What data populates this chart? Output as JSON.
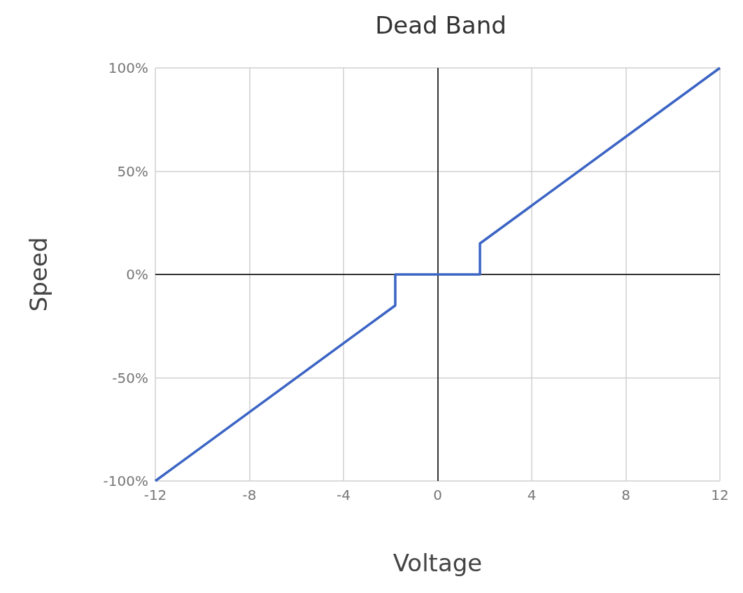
{
  "chart_data": {
    "type": "line",
    "title": "Dead Band",
    "xlabel": "Voltage",
    "ylabel": "Speed",
    "x": [
      -12,
      -1.8,
      -1.8,
      1.8,
      1.8,
      12
    ],
    "series": [
      {
        "color": "#3b64c4",
        "values": [
          -100,
          -15,
          0,
          0,
          15,
          100
        ]
      }
    ],
    "xlim": [
      -12,
      12
    ],
    "xticks": [
      -12,
      -8,
      -4,
      0,
      4,
      8,
      12
    ],
    "ylim": [
      -100,
      100
    ],
    "yticks": [
      {
        "value": -100,
        "label": "-100%"
      },
      {
        "value": -50,
        "label": "-50%"
      },
      {
        "value": 0,
        "label": "0%"
      },
      {
        "value": 50,
        "label": "50%"
      },
      {
        "value": 100,
        "label": "100%"
      }
    ],
    "grid": true,
    "marker": "none",
    "line_style": "solid"
  }
}
